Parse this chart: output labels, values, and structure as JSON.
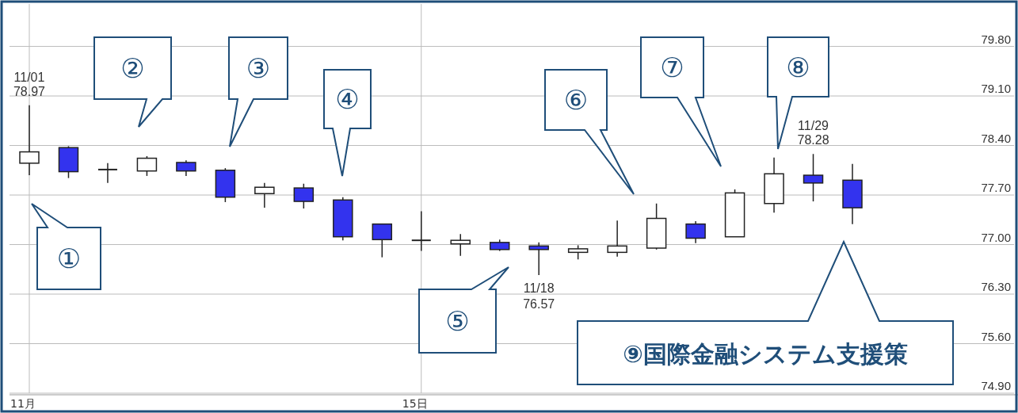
{
  "chart_data": {
    "type": "candlestick",
    "categories": [
      "11月",
      null,
      null,
      null,
      null,
      null,
      null,
      null,
      null,
      null,
      "15日",
      null,
      null,
      null,
      null,
      null,
      null,
      null,
      null,
      null,
      null,
      null
    ],
    "ohlc": [
      [
        78.15,
        78.97,
        77.98,
        78.31
      ],
      [
        78.37,
        78.39,
        77.94,
        78.03
      ],
      [
        78.06,
        78.15,
        77.87,
        78.06
      ],
      [
        78.04,
        78.25,
        77.97,
        78.22
      ],
      [
        78.16,
        78.19,
        77.97,
        78.04
      ],
      [
        78.05,
        78.08,
        77.6,
        77.67
      ],
      [
        77.72,
        77.87,
        77.52,
        77.81
      ],
      [
        77.8,
        77.86,
        77.51,
        77.61
      ],
      [
        77.63,
        77.67,
        77.06,
        77.11
      ],
      [
        77.29,
        77.29,
        76.82,
        77.07
      ],
      [
        77.06,
        77.47,
        76.91,
        77.06
      ],
      [
        77.01,
        77.15,
        76.84,
        77.06
      ],
      [
        77.03,
        77.07,
        76.91,
        76.93
      ],
      [
        76.98,
        77.03,
        76.57,
        76.93
      ],
      [
        76.89,
        76.99,
        76.79,
        76.94
      ],
      [
        76.89,
        77.34,
        76.83,
        76.98
      ],
      [
        76.95,
        77.58,
        76.93,
        77.37
      ],
      [
        77.29,
        77.33,
        77.02,
        77.09
      ],
      [
        77.11,
        77.78,
        77.11,
        77.73
      ],
      [
        77.58,
        78.23,
        77.45,
        78.0
      ],
      [
        77.98,
        78.28,
        77.61,
        77.87
      ],
      [
        77.91,
        78.14,
        77.29,
        77.52
      ]
    ],
    "colors": [
      "#ffffff",
      "#3333ee",
      "#222222",
      "#ffffff",
      "#3333ee",
      "#3333ee",
      "#ffffff",
      "#3333ee",
      "#3333ee",
      "#3333ee",
      "#222222",
      "#ffffff",
      "#3333ee",
      "#3333ee",
      "#ffffff",
      "#ffffff",
      "#ffffff",
      "#3333ee",
      "#ffffff",
      "#ffffff",
      "#3333ee",
      "#3333ee"
    ],
    "ylim": [
      74.9,
      80.4
    ],
    "yticks": [
      "74.90",
      "75.60",
      "76.30",
      "77.00",
      "77.70",
      "78.40",
      "79.10",
      "79.80"
    ],
    "grid": true,
    "annotations": [
      "①",
      "②",
      "③",
      "④",
      "⑤",
      "⑥",
      "⑦",
      "⑧",
      "⑨国際金融システム支援策",
      "11/01",
      "78.97",
      "11/18",
      "76.57",
      "11/29",
      "78.28"
    ]
  }
}
